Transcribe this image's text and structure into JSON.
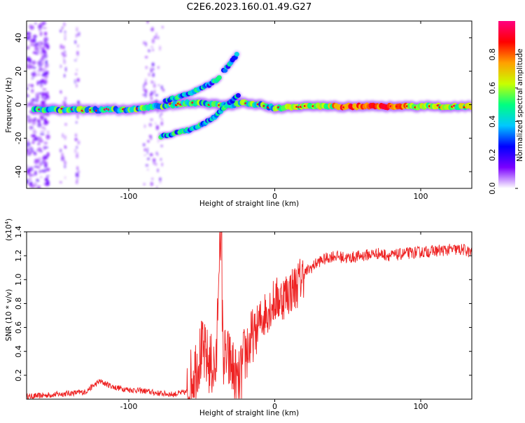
{
  "title": "C2E6.2023.160.01.49.G27",
  "chart_data": [
    {
      "type": "heatmap",
      "xlabel": "Height of straight line (km)",
      "ylabel": "Frequency (Hz)",
      "xlim": [
        -170,
        135
      ],
      "ylim": [
        -50,
        50
      ],
      "xticks": [
        -100,
        0,
        100
      ],
      "yticks": [
        -40,
        -20,
        0,
        20,
        40
      ],
      "colorbar": {
        "label": "Normalized spectral amplitude",
        "range": [
          0,
          1
        ],
        "ticks": [
          "0.0",
          "0.2",
          "0.4",
          "0.6",
          "0.8"
        ],
        "colors": [
          "#ffffff",
          "#7b00ff",
          "#0000ff",
          "#00c8ff",
          "#00ff80",
          "#c8ff00",
          "#ffa000",
          "#ff0000",
          "#ff0080"
        ]
      },
      "traces": [
        {
          "x": [
            -165,
            -140,
            -120,
            -100,
            -90,
            -80,
            -70,
            -60,
            -50,
            -40,
            -30,
            -20,
            -10,
            0,
            20,
            50,
            80,
            100,
            120,
            135
          ],
          "y": [
            -3,
            -3,
            -3,
            -3,
            -2,
            -1,
            0,
            1,
            1,
            0,
            0,
            1,
            0,
            -2,
            -1,
            -1,
            -1,
            -1,
            -1,
            -1
          ]
        },
        {
          "x": [
            -75,
            -65,
            -55,
            -45,
            -38
          ],
          "y": [
            2,
            5,
            8,
            12,
            16
          ]
        },
        {
          "x": [
            -78,
            -68,
            -58,
            -50,
            -42,
            -35,
            -30,
            -25
          ],
          "y": [
            -19,
            -17,
            -15,
            -12,
            -8,
            -2,
            2,
            5
          ]
        },
        {
          "x": [
            -35,
            -30,
            -26
          ],
          "y": [
            20,
            25,
            30
          ]
        }
      ]
    },
    {
      "type": "line",
      "xlabel": "Height of straight line (km)",
      "ylabel": "SNR (10 * v/v)",
      "yscale_label": "(x10",
      "yscale_exp": "4",
      "yscale_close": ")",
      "xlim": [
        -170,
        135
      ],
      "ylim": [
        0,
        1.4
      ],
      "xticks": [
        -100,
        0,
        100
      ],
      "yticks": [
        "0.2",
        "0.4",
        "0.6",
        "0.8",
        "1.0",
        "1.2",
        "1.4"
      ],
      "color": "#ee2222",
      "series": [
        {
          "x": [
            -170,
            -150,
            -130,
            -120,
            -110,
            -100,
            -90,
            -80,
            -70,
            -60,
            -55,
            -50,
            -45,
            -40,
            -38,
            -35,
            -30,
            -25,
            -20,
            -15,
            -10,
            -5,
            0,
            5,
            10,
            15,
            20,
            25,
            30,
            40,
            50,
            60,
            70,
            80,
            90,
            100,
            110,
            120,
            130,
            135
          ],
          "values": [
            0.02,
            0.04,
            0.06,
            0.15,
            0.1,
            0.08,
            0.07,
            0.05,
            0.04,
            0.06,
            0.25,
            0.4,
            0.3,
            0.25,
            1.35,
            0.35,
            0.3,
            0.1,
            0.4,
            0.5,
            0.65,
            0.75,
            0.82,
            0.85,
            0.9,
            0.95,
            1.05,
            1.1,
            1.15,
            1.2,
            1.18,
            1.2,
            1.22,
            1.2,
            1.22,
            1.23,
            1.24,
            1.25,
            1.25,
            1.22
          ]
        }
      ]
    }
  ]
}
